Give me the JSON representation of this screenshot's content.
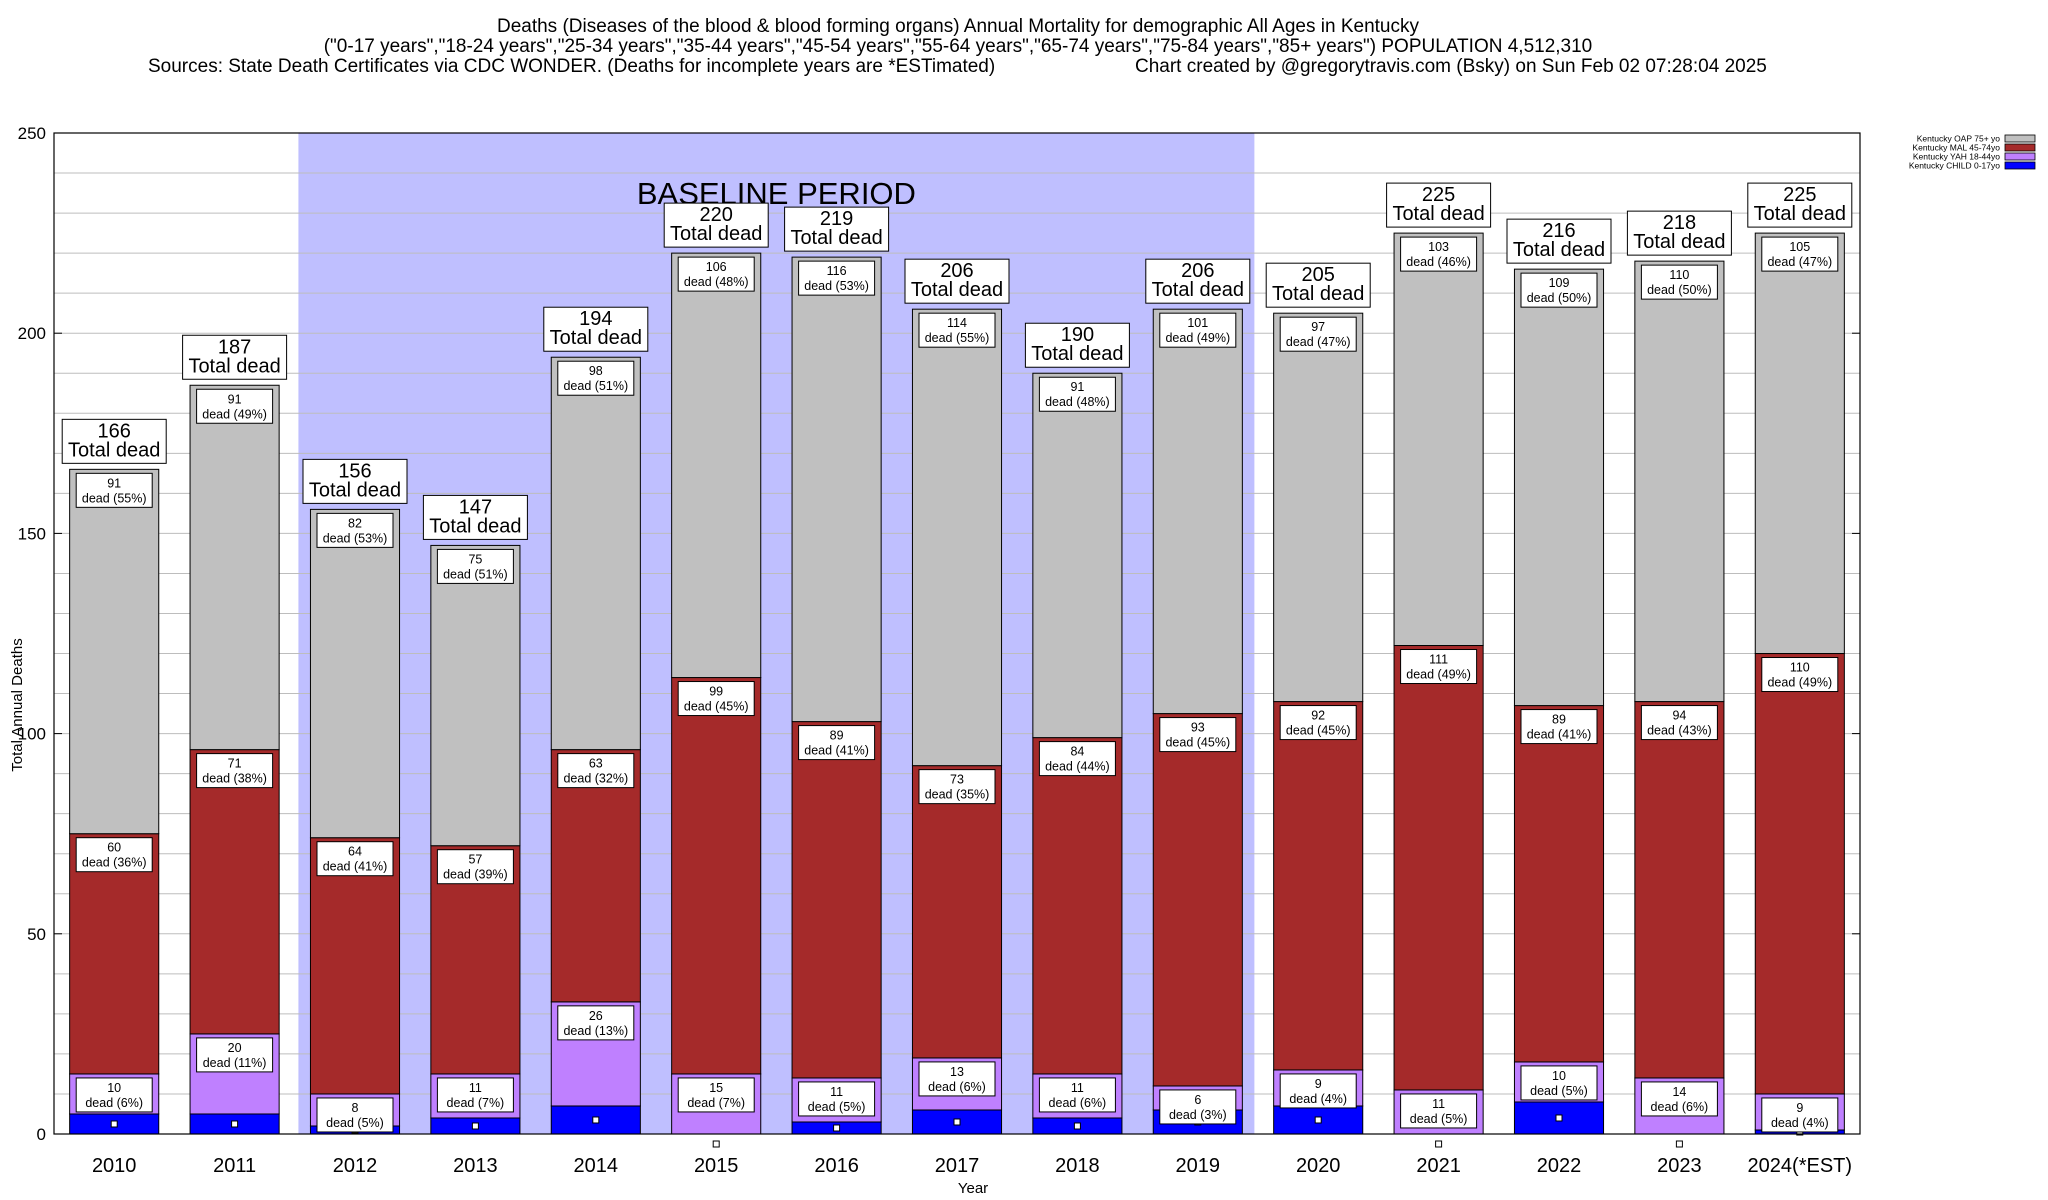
{
  "chart_data": {
    "type": "bar",
    "stacked": true,
    "title_lines": [
      "Deaths (Diseases of the blood & blood forming organs) Annual Mortality for demographic All Ages in Kentucky",
      "(\"0-17 years\",\"18-24 years\",\"25-34 years\",\"35-44 years\",\"45-54 years\",\"55-64 years\",\"65-74 years\",\"75-84 years\",\"85+ years\") POPULATION 4,512,310"
    ],
    "sources": "Sources: State Death Certificates via CDC WONDER. (Deaths for incomplete years are *ESTimated)",
    "credit": "Chart created by @gregorytravis.com (Bsky) on Sun Feb 02 07:28:04 2025",
    "xlabel": "Year",
    "ylabel": "Total Annual Deaths",
    "ylim": [
      0,
      250
    ],
    "yticks": [
      0,
      50,
      100,
      150,
      200,
      250
    ],
    "grid": true,
    "legend_position": "top-right",
    "baseline_label": "BASELINE PERIOD",
    "baseline_range": [
      "2012",
      "2019"
    ],
    "total_suffix": "Total dead",
    "seg_dead_word": "dead",
    "categories": [
      "2010",
      "2011",
      "2012",
      "2013",
      "2014",
      "2015",
      "2016",
      "2017",
      "2018",
      "2019",
      "2020",
      "2021",
      "2022",
      "2023",
      "2024(*EST)"
    ],
    "totals": [
      166,
      187,
      156,
      147,
      194,
      220,
      219,
      206,
      190,
      206,
      205,
      225,
      216,
      218,
      225
    ],
    "series": [
      {
        "name": "Kentucky CHILD 0-17yo",
        "color": "#0000ff",
        "values": [
          5,
          5,
          2,
          4,
          7,
          0,
          3,
          6,
          4,
          6,
          7,
          0,
          8,
          0,
          1
        ],
        "labeled": false
      },
      {
        "name": "Kentucky YAH 18-44yo",
        "color": "#bf80ff",
        "values": [
          10,
          20,
          8,
          11,
          26,
          15,
          11,
          13,
          11,
          6,
          9,
          11,
          10,
          14,
          9
        ],
        "percents": [
          6,
          11,
          5,
          7,
          13,
          7,
          5,
          6,
          6,
          3,
          4,
          5,
          5,
          6,
          4
        ],
        "labeled": true
      },
      {
        "name": "Kentucky MAL 45-74yo",
        "color": "#a52a2a",
        "values": [
          60,
          71,
          64,
          57,
          63,
          99,
          89,
          73,
          84,
          93,
          92,
          111,
          89,
          94,
          110
        ],
        "percents": [
          36,
          38,
          41,
          39,
          32,
          45,
          41,
          35,
          44,
          45,
          45,
          49,
          41,
          43,
          49
        ],
        "labeled": true
      },
      {
        "name": "Kentucky OAP 75+ yo",
        "color": "#c0c0c0",
        "values": [
          91,
          91,
          82,
          75,
          98,
          106,
          116,
          114,
          91,
          101,
          97,
          103,
          109,
          110,
          105
        ],
        "percents": [
          55,
          49,
          53,
          51,
          51,
          48,
          53,
          55,
          48,
          49,
          47,
          46,
          50,
          50,
          47
        ],
        "labeled": true
      }
    ]
  }
}
